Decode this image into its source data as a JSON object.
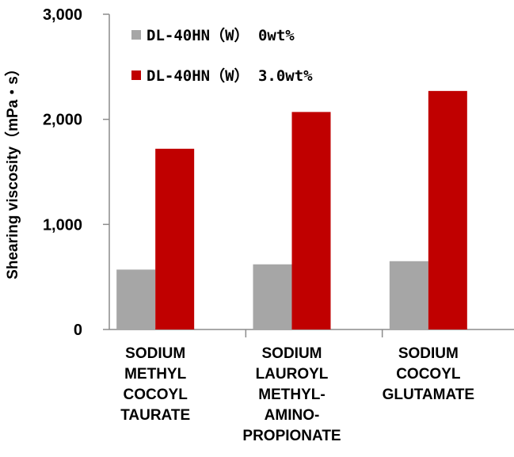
{
  "chart_data": {
    "type": "bar",
    "ylabel": "Shearing viscosity（mPa・s）",
    "xlabel": "",
    "ylim": [
      0,
      3000
    ],
    "y_ticks": [
      "0",
      "1,000",
      "2,000",
      "3,000"
    ],
    "y_tick_values": [
      0,
      1000,
      2000,
      3000
    ],
    "categories": [
      [
        "SODIUM",
        "METHYL",
        "COCOYL",
        "TAURATE"
      ],
      [
        "SODIUM",
        "LAUROYL",
        "METHYL-",
        "AMINO-",
        "PROPIONATE"
      ],
      [
        "SODIUM",
        "COCOYL",
        "GLUTAMATE"
      ]
    ],
    "series": [
      {
        "name": "DL-40HN（W） 0wt%",
        "color": "#a6a6a6",
        "values": [
          570,
          620,
          650
        ]
      },
      {
        "name": "DL-40HN（W） 3.0wt%",
        "color": "#c00000",
        "values": [
          1720,
          2070,
          2270
        ]
      }
    ],
    "legend_position": "top-left",
    "grid": false
  }
}
